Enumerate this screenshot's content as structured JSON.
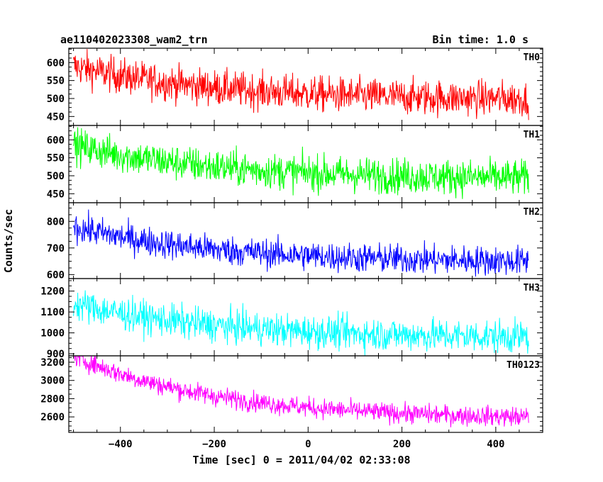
{
  "chart_data": {
    "type": "line",
    "title_left": "ae110402023308_wam2_trn",
    "title_right": "Bin time: 1.0 s",
    "xlabel": "Time [sec] 0 = 2011/04/02 02:33:08",
    "ylabel": "Counts/sec",
    "xlim": [
      -510,
      500
    ],
    "x_ticks": [
      -400,
      -200,
      0,
      200,
      400
    ],
    "x_tick_labels": [
      "−400",
      "−200",
      "0",
      "200",
      "400"
    ],
    "x_start": -500,
    "x_end": 470,
    "series": [
      {
        "name": "TH0",
        "color": "#ff0000",
        "ylim": [
          425,
          640
        ],
        "y_ticks": [
          450,
          500,
          550,
          600
        ],
        "y_tick_labels": [
          "450",
          "500",
          "550",
          "600"
        ],
        "start_level": 590,
        "end_level": 495,
        "noise": 25
      },
      {
        "name": "TH1",
        "color": "#00ff00",
        "ylim": [
          425,
          640
        ],
        "y_ticks": [
          450,
          500,
          550,
          600
        ],
        "y_tick_labels": [
          "450",
          "500",
          "550",
          "600"
        ],
        "start_level": 585,
        "end_level": 490,
        "noise": 25
      },
      {
        "name": "TH2",
        "color": "#0000ff",
        "ylim": [
          585,
          870
        ],
        "y_ticks": [
          600,
          700,
          800
        ],
        "y_tick_labels": [
          "600",
          "700",
          "800"
        ],
        "start_level": 780,
        "end_level": 645,
        "noise": 28
      },
      {
        "name": "TH3",
        "color": "#00ffff",
        "ylim": [
          890,
          1260
        ],
        "y_ticks": [
          900,
          1000,
          1100,
          1200
        ],
        "y_tick_labels": [
          "900",
          "1000",
          "1100",
          "1200"
        ],
        "start_level": 1140,
        "end_level": 975,
        "noise": 40
      },
      {
        "name": "TH0123",
        "color": "#ff00ff",
        "ylim": [
          2430,
          3270
        ],
        "y_ticks": [
          2600,
          2800,
          3000,
          3200
        ],
        "y_tick_labels": [
          "2600",
          "2800",
          "3000",
          "3200"
        ],
        "start_level": 3270,
        "end_level": 2570,
        "noise": 55
      }
    ]
  }
}
